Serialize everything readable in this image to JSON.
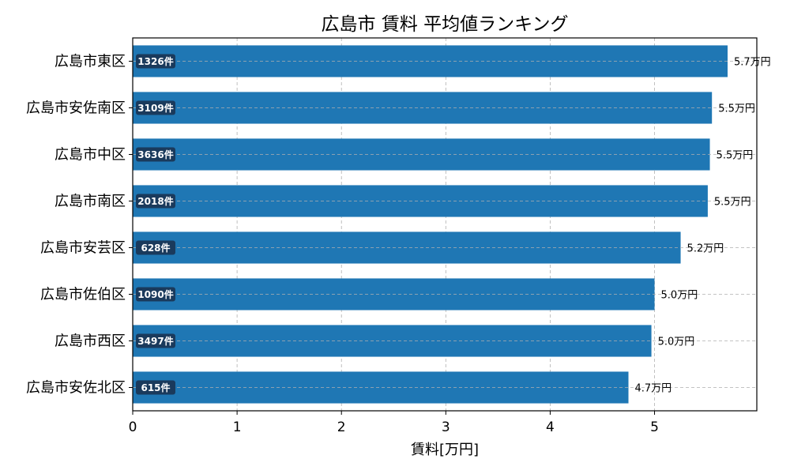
{
  "chart_data": {
    "type": "bar",
    "orientation": "horizontal",
    "title": "広島市 賃料 平均値ランキング",
    "xlabel": "賃料[万円]",
    "ylabel": "",
    "xlim": [
      0,
      5.98
    ],
    "xticks": [
      0,
      1,
      2,
      3,
      4,
      5
    ],
    "grid": true,
    "bar_color": "#1f77b4",
    "count_badge_color": "#1a3a5c",
    "categories": [
      "広島市東区",
      "広島市安佐南区",
      "広島市中区",
      "広島市南区",
      "広島市安芸区",
      "広島市佐伯区",
      "広島市西区",
      "広島市安佐北区"
    ],
    "values": [
      5.7,
      5.55,
      5.53,
      5.51,
      5.25,
      5.0,
      4.97,
      4.75
    ],
    "value_labels": [
      "5.7万円",
      "5.5万円",
      "5.5万円",
      "5.5万円",
      "5.2万円",
      "5.0万円",
      "5.0万円",
      "4.7万円"
    ],
    "count_labels": [
      "1326件",
      "3109件",
      "3636件",
      "2018件",
      "628件",
      "1090件",
      "3497件",
      "615件"
    ]
  }
}
